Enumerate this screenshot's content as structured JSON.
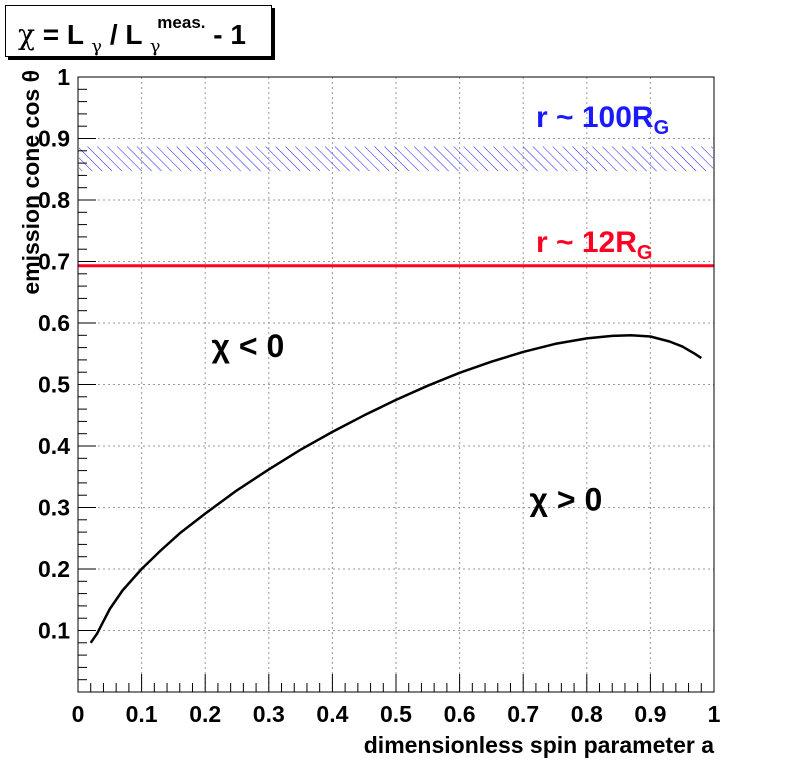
{
  "chart_data": {
    "type": "line",
    "title_parts": {
      "chi": "χ",
      "eq": " = L",
      "gamma_sub": "γ",
      "slash": " / L",
      "gamma_sub2": "γ",
      "sup": "meas.",
      "minus": " - 1"
    },
    "xlabel": "dimensionless spin parameter a",
    "ylabel": "emission cone cos θ",
    "xlim": [
      0,
      1
    ],
    "ylim": [
      0,
      1
    ],
    "xticks": [
      "0",
      "0.1",
      "0.2",
      "0.3",
      "0.4",
      "0.5",
      "0.6",
      "0.7",
      "0.8",
      "0.9",
      "1"
    ],
    "yticks": [
      "0.1",
      "0.2",
      "0.3",
      "0.4",
      "0.5",
      "0.6",
      "0.7",
      "0.8",
      "0.9",
      "1"
    ],
    "grid": true,
    "series": [
      {
        "color": "#000000",
        "x": [
          0.02,
          0.03,
          0.04,
          0.05,
          0.07,
          0.1,
          0.13,
          0.16,
          0.2,
          0.25,
          0.3,
          0.35,
          0.4,
          0.45,
          0.5,
          0.55,
          0.6,
          0.65,
          0.7,
          0.75,
          0.8,
          0.84,
          0.87,
          0.9,
          0.93,
          0.95,
          0.97,
          0.98
        ],
        "y": [
          0.08,
          0.095,
          0.115,
          0.135,
          0.165,
          0.2,
          0.23,
          0.258,
          0.29,
          0.328,
          0.362,
          0.394,
          0.423,
          0.45,
          0.475,
          0.498,
          0.519,
          0.537,
          0.553,
          0.566,
          0.575,
          0.579,
          0.58,
          0.578,
          0.57,
          0.562,
          0.55,
          0.543
        ]
      }
    ],
    "hlines": [
      {
        "y": 0.693,
        "color": "#ff0022",
        "label_main": "r ~ 12R",
        "label_sub": "G"
      }
    ],
    "bands": [
      {
        "y0": 0.847,
        "y1": 0.887,
        "color": "#1a1aff",
        "label_main": "r ~ 100R",
        "label_sub": "G"
      }
    ],
    "annotations": [
      {
        "text": "χ < 0",
        "x": 0.21,
        "y": 0.545
      },
      {
        "text": "χ > 0",
        "x": 0.71,
        "y": 0.295
      }
    ]
  }
}
